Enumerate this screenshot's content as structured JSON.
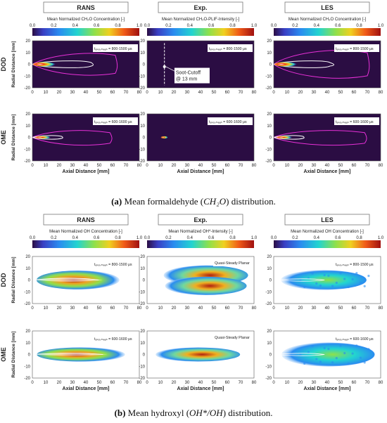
{
  "figure": {
    "panel_a": {
      "headers": [
        "RANS",
        "Exp.",
        "LES"
      ],
      "colorbar_titles": [
        "Mean Normalized CH₂O Concentration [-]",
        "Mean Normalized CH₂O-PLIF-Intensity [-]",
        "Mean Normalized CH₂O Concentration [-]"
      ],
      "colorbar_ticks": [
        "0.0",
        "0.2",
        "0.4",
        "0.6",
        "0.8",
        "1.0"
      ],
      "row_labels": [
        "DOD",
        "OME"
      ],
      "time_labels": [
        "t_aSOI,mean = 800-1500 μs",
        "t_aSOI,mean = 600-1600 μs"
      ],
      "annotation": "Soot-Cutoff\n@ 13 mm",
      "caption_label": "(a)",
      "caption_text": "Mean formaldehyde (",
      "caption_italic": "CH₂O",
      "caption_end": ") distribution."
    },
    "panel_b": {
      "headers": [
        "RANS",
        "Exp.",
        "LES"
      ],
      "colorbar_titles": [
        "Mean Normalized OH Concentration [-]",
        "Mean Normalized OH*-Intensity [-]",
        "Mean Normalized OH Concentration [-]"
      ],
      "colorbar_ticks": [
        "0.0",
        "0.2",
        "0.4",
        "0.6",
        "0.8",
        "1.0"
      ],
      "row_labels": [
        "DOD",
        "OME"
      ],
      "time_labels": [
        "t_aSOI,mean = 800-1500 μs",
        "t_aSOI,mean = 600-1600 μs"
      ],
      "exp_label": "Quasi-Steady Planar",
      "caption_label": "(b)",
      "caption_text": "Mean hydroxyl (",
      "caption_italic": "OH*/OH",
      "caption_end": ") distribution."
    },
    "axes": {
      "x_label": "Axial Distance [mm]",
      "y_label": "Radial Distance [mm]",
      "x_ticks": [
        "0",
        "10",
        "20",
        "30",
        "40",
        "50",
        "60",
        "70",
        "80"
      ],
      "y_ticks": [
        "20",
        "10",
        "0",
        "-10",
        "-20"
      ]
    },
    "colors": {
      "background": "#2b0d43",
      "contour_outer": "#e830d8",
      "contour_inner": "#ffffff"
    }
  }
}
